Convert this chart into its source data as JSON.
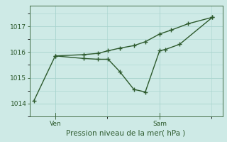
{
  "title": "Pression niveau de la mer( hPa )",
  "background_color": "#ceeae6",
  "line_color": "#2d5a2d",
  "grid_color": "#a8d4ce",
  "axis_color": "#2d5a2d",
  "tick_label_color": "#2d5a2d",
  "xlabel_color": "#2d5a2d",
  "ylim": [
    1013.5,
    1017.8
  ],
  "yticks": [
    1014,
    1015,
    1016,
    1017
  ],
  "series1_x": [
    0,
    1.5,
    3.5,
    4.5,
    5.2,
    6.0,
    7.0,
    7.8,
    8.8,
    9.2,
    10.2,
    12.5
  ],
  "series1_y": [
    1014.1,
    1015.85,
    1015.75,
    1015.72,
    1015.72,
    1015.25,
    1014.55,
    1014.45,
    1016.05,
    1016.1,
    1016.3,
    1017.35
  ],
  "series2_x": [
    1.5,
    3.5,
    4.5,
    5.2,
    6.0,
    7.0,
    7.8,
    8.8,
    9.6,
    10.8,
    12.5
  ],
  "series2_y": [
    1015.85,
    1015.9,
    1015.95,
    1016.05,
    1016.15,
    1016.25,
    1016.4,
    1016.7,
    1016.85,
    1017.1,
    1017.35
  ],
  "ven_x": 1.5,
  "sam_x": 8.8,
  "xlim": [
    -0.3,
    13.2
  ],
  "marker_style": "+",
  "marker_size": 4,
  "linewidth": 1.0
}
